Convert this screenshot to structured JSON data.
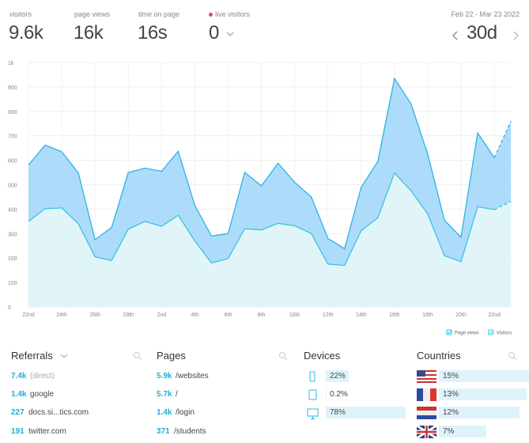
{
  "header": {
    "stats": [
      {
        "label": "visitors",
        "value": "9.6k"
      },
      {
        "label": "page views",
        "value": "16k"
      },
      {
        "label": "time on page",
        "value": "16s"
      },
      {
        "label": "live visitors",
        "value": "0"
      }
    ],
    "date_range": "Feb 22 - Mar 23 2022",
    "period": "30d"
  },
  "chart_data": {
    "type": "area",
    "categories": [
      "22nd",
      null,
      "24th",
      null,
      "26th",
      null,
      "28th",
      null,
      "2nd",
      null,
      "4th",
      null,
      "6th",
      null,
      "8th",
      null,
      "10th",
      null,
      "12th",
      null,
      "14th",
      null,
      "16th",
      null,
      "18th",
      null,
      "20th",
      null,
      "22nd",
      null
    ],
    "series": [
      {
        "name": "Page views",
        "color": "#2bb4e4",
        "fill": "#acdcfa",
        "values": [
          580,
          662,
          635,
          548,
          275,
          325,
          550,
          568,
          555,
          637,
          415,
          290,
          300,
          550,
          495,
          588,
          510,
          450,
          280,
          238,
          490,
          595,
          935,
          830,
          625,
          355,
          285,
          712,
          610,
          760
        ]
      },
      {
        "name": "Visitors",
        "color": "#3cc2e2",
        "fill": "#e1f5f9",
        "values": [
          350,
          402,
          405,
          340,
          205,
          190,
          318,
          350,
          330,
          375,
          270,
          180,
          198,
          320,
          315,
          342,
          332,
          300,
          175,
          170,
          312,
          365,
          548,
          475,
          380,
          210,
          185,
          410,
          398,
          432
        ]
      }
    ],
    "ylim": [
      0,
      1000
    ],
    "yticks": [
      0,
      100,
      200,
      300,
      400,
      500,
      600,
      700,
      800,
      900,
      {
        "value": 1000,
        "label": "1k"
      }
    ],
    "grid": true,
    "legend": "bottom-right"
  },
  "referrals": {
    "title": "Referrals",
    "rows": [
      {
        "count": "7.4k",
        "label": "(direct)"
      },
      {
        "count": "1.4k",
        "label": "google"
      },
      {
        "count": "227",
        "label": "docs.si...tics.com"
      },
      {
        "count": "191",
        "label": "twitter.com"
      }
    ]
  },
  "pages": {
    "title": "Pages",
    "rows": [
      {
        "count": "5.9k",
        "label": "/websites"
      },
      {
        "count": "5.7k",
        "label": "/"
      },
      {
        "count": "1.4k",
        "label": "/login"
      },
      {
        "count": "371",
        "label": "/students"
      }
    ]
  },
  "devices": {
    "title": "Devices",
    "values": [
      22,
      0.2,
      78
    ],
    "value_labels": [
      "22%",
      "0.2%",
      "78%"
    ]
  },
  "countries": {
    "title": "Countries",
    "values": [
      15,
      13,
      12,
      7
    ],
    "value_labels": [
      "15%",
      "13%",
      "12%",
      "7%"
    ]
  }
}
